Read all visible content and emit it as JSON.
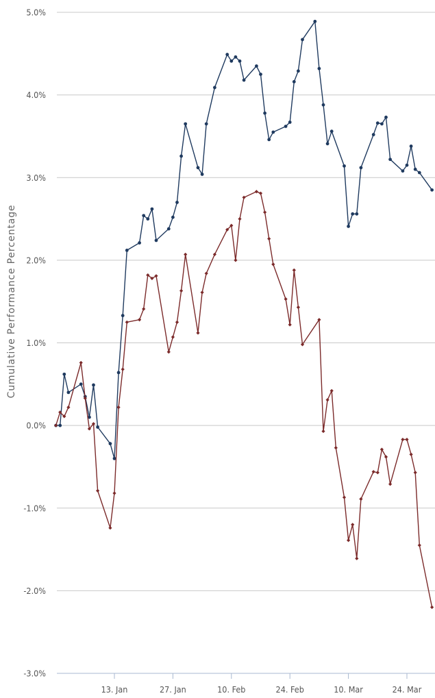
{
  "chart_data": {
    "type": "line",
    "title": "",
    "xlabel": "",
    "ylabel": "Cumulative Performance Percentage",
    "ylim": [
      -3.0,
      5.0
    ],
    "y_ticks": [
      5.0,
      4.0,
      3.0,
      2.0,
      1.0,
      0.0,
      -1.0,
      -2.0,
      -3.0
    ],
    "y_tick_labels": [
      "5.0%",
      "4.0%",
      "3.0%",
      "2.0%",
      "1.0%",
      "0.0%",
      "-1.0%",
      "-2.0%",
      "-3.0%"
    ],
    "x_range": [
      "2014-12-29",
      "2015-03-31"
    ],
    "x_ticks": [
      "2015-01-13",
      "2015-01-27",
      "2015-02-10",
      "2015-02-24",
      "2015-03-10",
      "2015-03-24"
    ],
    "x_tick_labels": [
      "13. Jan",
      "27. Jan",
      "10. Feb",
      "24. Feb",
      "10. Mar",
      "24. Mar"
    ],
    "grid": true,
    "legend": "none",
    "series": [
      {
        "color": "#1f3a5f",
        "marker": "circle",
        "points": [
          [
            "2014-12-30",
            0.0
          ],
          [
            "2014-12-31",
            0.0
          ],
          [
            "2015-01-01",
            0.62
          ],
          [
            "2015-01-02",
            0.4
          ],
          [
            "2015-01-05",
            0.5
          ],
          [
            "2015-01-06",
            0.35
          ],
          [
            "2015-01-07",
            0.1
          ],
          [
            "2015-01-08",
            0.49
          ],
          [
            "2015-01-09",
            -0.02
          ],
          [
            "2015-01-12",
            -0.22
          ],
          [
            "2015-01-13",
            -0.4
          ],
          [
            "2015-01-14",
            0.64
          ],
          [
            "2015-01-15",
            1.33
          ],
          [
            "2015-01-16",
            2.12
          ],
          [
            "2015-01-19",
            2.21
          ],
          [
            "2015-01-20",
            2.54
          ],
          [
            "2015-01-21",
            2.5
          ],
          [
            "2015-01-22",
            2.62
          ],
          [
            "2015-01-23",
            2.24
          ],
          [
            "2015-01-26",
            2.38
          ],
          [
            "2015-01-27",
            2.52
          ],
          [
            "2015-01-28",
            2.7
          ],
          [
            "2015-01-29",
            3.26
          ],
          [
            "2015-01-30",
            3.65
          ],
          [
            "2015-02-02",
            3.12
          ],
          [
            "2015-02-03",
            3.04
          ],
          [
            "2015-02-04",
            3.65
          ],
          [
            "2015-02-06",
            4.09
          ],
          [
            "2015-02-09",
            4.49
          ],
          [
            "2015-02-10",
            4.41
          ],
          [
            "2015-02-11",
            4.46
          ],
          [
            "2015-02-12",
            4.41
          ],
          [
            "2015-02-13",
            4.18
          ],
          [
            "2015-02-16",
            4.35
          ],
          [
            "2015-02-17",
            4.25
          ],
          [
            "2015-02-18",
            3.78
          ],
          [
            "2015-02-19",
            3.46
          ],
          [
            "2015-02-20",
            3.55
          ],
          [
            "2015-02-23",
            3.62
          ],
          [
            "2015-02-24",
            3.67
          ],
          [
            "2015-02-25",
            4.16
          ],
          [
            "2015-02-26",
            4.29
          ],
          [
            "2015-02-27",
            4.67
          ],
          [
            "2015-03-02",
            4.89
          ],
          [
            "2015-03-03",
            4.32
          ],
          [
            "2015-03-04",
            3.88
          ],
          [
            "2015-03-05",
            3.41
          ],
          [
            "2015-03-06",
            3.56
          ],
          [
            "2015-03-09",
            3.14
          ],
          [
            "2015-03-10",
            2.41
          ],
          [
            "2015-03-11",
            2.56
          ],
          [
            "2015-03-12",
            2.56
          ],
          [
            "2015-03-13",
            3.12
          ],
          [
            "2015-03-16",
            3.52
          ],
          [
            "2015-03-17",
            3.66
          ],
          [
            "2015-03-18",
            3.65
          ],
          [
            "2015-03-19",
            3.73
          ],
          [
            "2015-03-20",
            3.22
          ],
          [
            "2015-03-23",
            3.08
          ],
          [
            "2015-03-24",
            3.15
          ],
          [
            "2015-03-25",
            3.38
          ],
          [
            "2015-03-26",
            3.1
          ],
          [
            "2015-03-27",
            3.06
          ],
          [
            "2015-03-30",
            2.85
          ]
        ]
      },
      {
        "color": "#7b2a2a",
        "marker": "diamond",
        "points": [
          [
            "2014-12-30",
            0.0
          ],
          [
            "2014-12-31",
            0.16
          ],
          [
            "2015-01-01",
            0.11
          ],
          [
            "2015-01-02",
            0.22
          ],
          [
            "2015-01-05",
            0.76
          ],
          [
            "2015-01-06",
            0.33
          ],
          [
            "2015-01-07",
            -0.04
          ],
          [
            "2015-01-08",
            0.02
          ],
          [
            "2015-01-09",
            -0.79
          ],
          [
            "2015-01-12",
            -1.24
          ],
          [
            "2015-01-13",
            -0.82
          ],
          [
            "2015-01-14",
            0.22
          ],
          [
            "2015-01-15",
            0.68
          ],
          [
            "2015-01-16",
            1.25
          ],
          [
            "2015-01-19",
            1.28
          ],
          [
            "2015-01-20",
            1.41
          ],
          [
            "2015-01-21",
            1.82
          ],
          [
            "2015-01-22",
            1.78
          ],
          [
            "2015-01-23",
            1.81
          ],
          [
            "2015-01-26",
            0.89
          ],
          [
            "2015-01-27",
            1.07
          ],
          [
            "2015-01-28",
            1.25
          ],
          [
            "2015-01-29",
            1.63
          ],
          [
            "2015-01-30",
            2.07
          ],
          [
            "2015-02-02",
            1.12
          ],
          [
            "2015-02-03",
            1.61
          ],
          [
            "2015-02-04",
            1.84
          ],
          [
            "2015-02-06",
            2.07
          ],
          [
            "2015-02-09",
            2.37
          ],
          [
            "2015-02-10",
            2.42
          ],
          [
            "2015-02-11",
            2.0
          ],
          [
            "2015-02-12",
            2.5
          ],
          [
            "2015-02-13",
            2.76
          ],
          [
            "2015-02-16",
            2.83
          ],
          [
            "2015-02-17",
            2.81
          ],
          [
            "2015-02-18",
            2.58
          ],
          [
            "2015-02-19",
            2.26
          ],
          [
            "2015-02-20",
            1.95
          ],
          [
            "2015-02-23",
            1.53
          ],
          [
            "2015-02-24",
            1.22
          ],
          [
            "2015-02-25",
            1.88
          ],
          [
            "2015-02-26",
            1.43
          ],
          [
            "2015-02-27",
            0.98
          ],
          [
            "2015-03-03",
            1.28
          ],
          [
            "2015-03-04",
            -0.07
          ],
          [
            "2015-03-05",
            0.31
          ],
          [
            "2015-03-06",
            0.42
          ],
          [
            "2015-03-07",
            -0.27
          ],
          [
            "2015-03-09",
            -0.87
          ],
          [
            "2015-03-10",
            -1.39
          ],
          [
            "2015-03-11",
            -1.2
          ],
          [
            "2015-03-12",
            -1.61
          ],
          [
            "2015-03-13",
            -0.89
          ],
          [
            "2015-03-16",
            -0.56
          ],
          [
            "2015-03-17",
            -0.57
          ],
          [
            "2015-03-18",
            -0.29
          ],
          [
            "2015-03-19",
            -0.38
          ],
          [
            "2015-03-20",
            -0.71
          ],
          [
            "2015-03-23",
            -0.17
          ],
          [
            "2015-03-24",
            -0.17
          ],
          [
            "2015-03-25",
            -0.35
          ],
          [
            "2015-03-26",
            -0.57
          ],
          [
            "2015-03-27",
            -1.45
          ],
          [
            "2015-03-30",
            -2.2
          ]
        ]
      }
    ]
  }
}
